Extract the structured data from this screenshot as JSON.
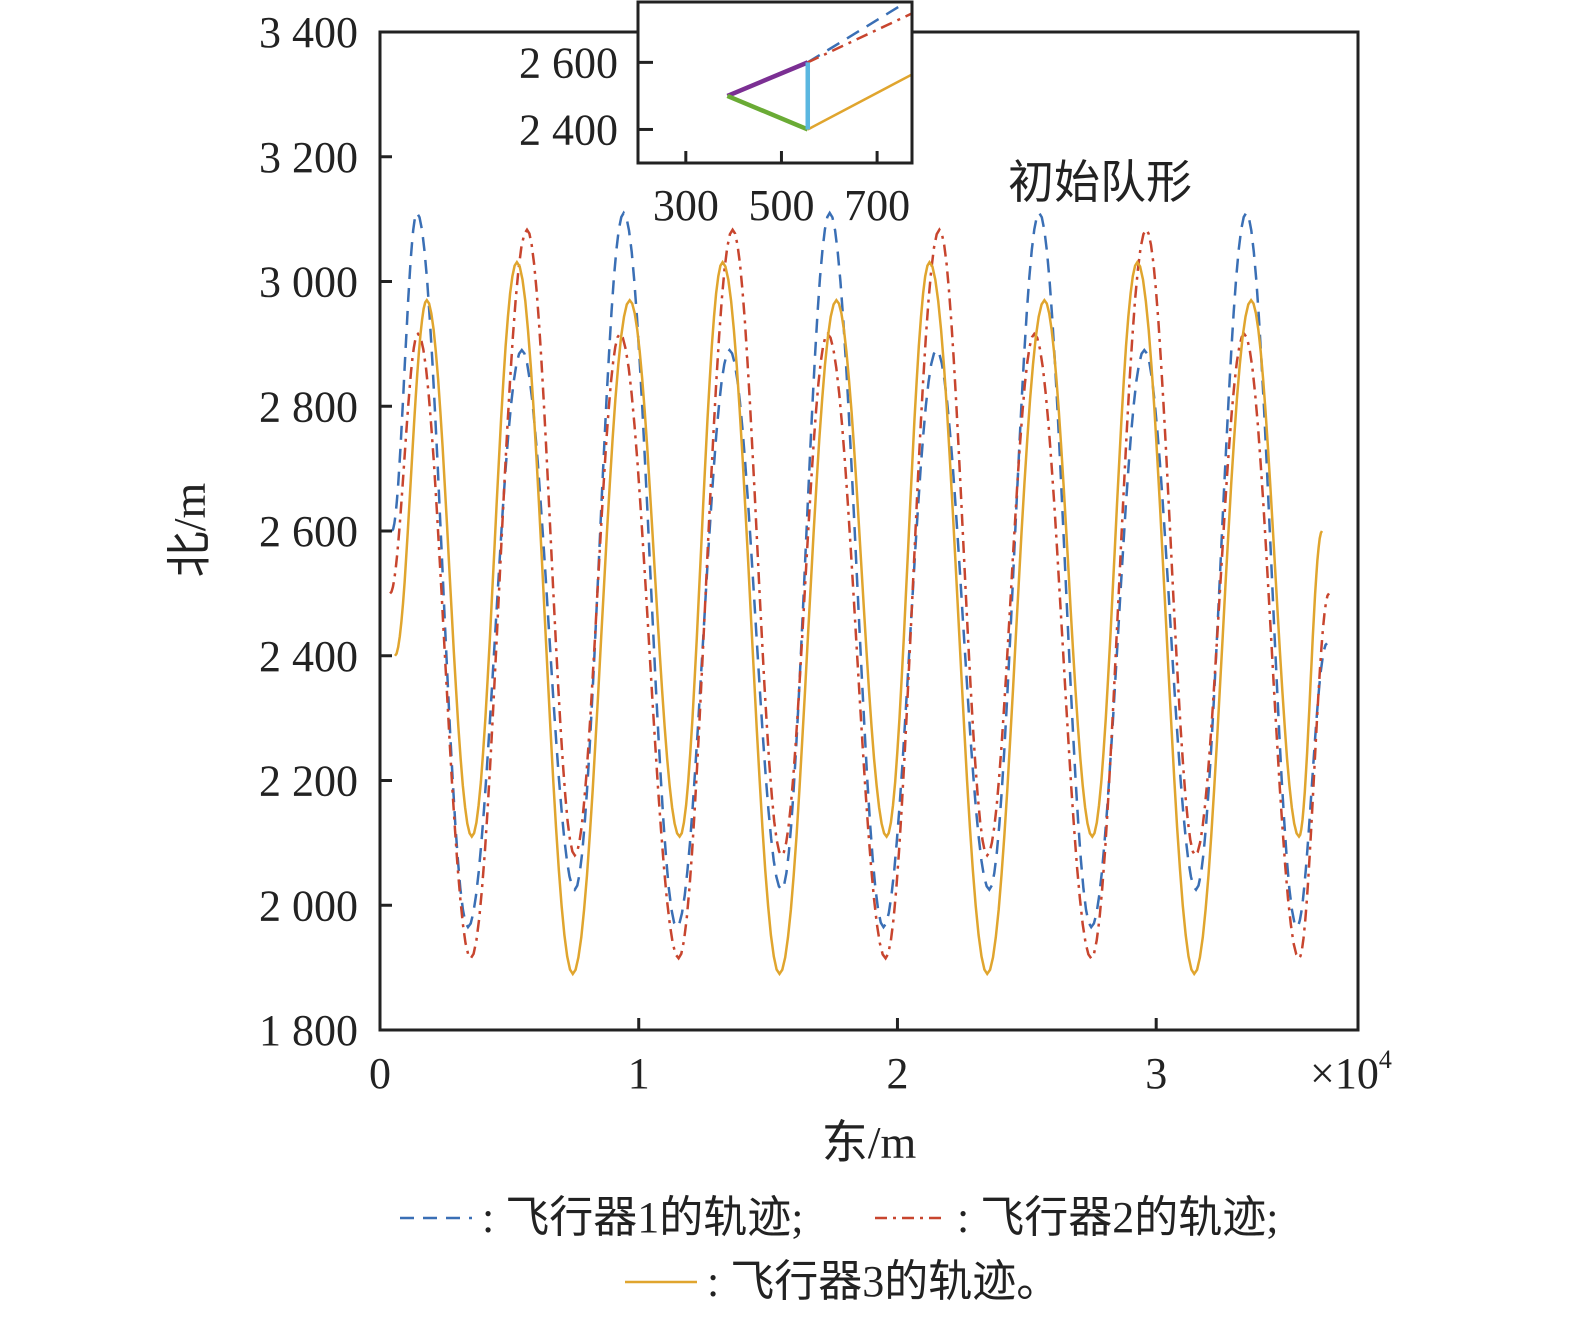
{
  "chart_data": {
    "type": "line",
    "title": "",
    "xlabel": "东/m",
    "ylabel": "北/m",
    "x_multiplier_label": "×10",
    "x_multiplier_exp": "4",
    "xlim": [
      0,
      37800
    ],
    "ylim": [
      1800,
      3400
    ],
    "xticks": [
      {
        "v": 0,
        "label": "0"
      },
      {
        "v": 10000,
        "label": "1"
      },
      {
        "v": 20000,
        "label": "2"
      },
      {
        "v": 30000,
        "label": "3"
      }
    ],
    "yticks": [
      {
        "v": 1800,
        "label": "1 800"
      },
      {
        "v": 2000,
        "label": "2 000"
      },
      {
        "v": 2200,
        "label": "2 200"
      },
      {
        "v": 2400,
        "label": "2 400"
      },
      {
        "v": 2600,
        "label": "2 600"
      },
      {
        "v": 2800,
        "label": "2 800"
      },
      {
        "v": 3000,
        "label": "3 000"
      },
      {
        "v": 3200,
        "label": "3 200"
      },
      {
        "v": 3400,
        "label": "3 400"
      }
    ],
    "annotation": "初始队形",
    "series": [
      {
        "name": "飞行器1的轨迹",
        "color": "#3a6fb5",
        "dash": "dashed",
        "points": [
          [
            460,
            2600
          ],
          [
            1430,
            3110
          ],
          [
            3400,
            1965
          ],
          [
            5480,
            2890
          ],
          [
            7530,
            2025
          ],
          [
            9420,
            3110
          ],
          [
            11470,
            1965
          ],
          [
            13510,
            2890
          ],
          [
            15520,
            2025
          ],
          [
            17380,
            3110
          ],
          [
            19460,
            1965
          ],
          [
            21510,
            2890
          ],
          [
            23550,
            2025
          ],
          [
            25480,
            3110
          ],
          [
            27490,
            1965
          ],
          [
            29540,
            2890
          ],
          [
            31540,
            2025
          ],
          [
            33480,
            3110
          ],
          [
            35440,
            1965
          ],
          [
            36600,
            2420
          ]
        ]
      },
      {
        "name": "飞行器2的轨迹",
        "color": "#c8452e",
        "dash": "dashdot",
        "points": [
          [
            390,
            2500
          ],
          [
            1470,
            2916
          ],
          [
            3510,
            1915
          ],
          [
            5680,
            3083
          ],
          [
            7530,
            2080
          ],
          [
            9270,
            2916
          ],
          [
            11540,
            1915
          ],
          [
            13630,
            3083
          ],
          [
            15520,
            2080
          ],
          [
            17300,
            2916
          ],
          [
            19540,
            1915
          ],
          [
            21620,
            3083
          ],
          [
            23470,
            2080
          ],
          [
            25290,
            2916
          ],
          [
            27490,
            1915
          ],
          [
            29610,
            3083
          ],
          [
            31510,
            2080
          ],
          [
            33400,
            2916
          ],
          [
            35520,
            1915
          ],
          [
            36680,
            2500
          ]
        ]
      },
      {
        "name": "飞行器3的轨迹",
        "color": "#e0a52e",
        "dash": "solid",
        "points": [
          [
            580,
            2400
          ],
          [
            1810,
            2970
          ],
          [
            3550,
            2110
          ],
          [
            5290,
            3031
          ],
          [
            7450,
            1890
          ],
          [
            9650,
            2970
          ],
          [
            11580,
            2110
          ],
          [
            13240,
            3031
          ],
          [
            15440,
            1890
          ],
          [
            17640,
            2970
          ],
          [
            19580,
            2110
          ],
          [
            21240,
            3031
          ],
          [
            23470,
            1890
          ],
          [
            25680,
            2970
          ],
          [
            27530,
            2110
          ],
          [
            29270,
            3031
          ],
          [
            31470,
            1890
          ],
          [
            33670,
            2970
          ],
          [
            35520,
            2110
          ],
          [
            36410,
            2600
          ]
        ]
      }
    ],
    "inset": {
      "xlim": [
        200,
        773
      ],
      "ylim": [
        2300,
        2780
      ],
      "xticks": [
        {
          "v": 300,
          "label": "300"
        },
        {
          "v": 500,
          "label": "500"
        },
        {
          "v": 700,
          "label": "700"
        }
      ],
      "yticks": [
        {
          "v": 2400,
          "label": "2 400"
        },
        {
          "v": 2600,
          "label": "2 600"
        }
      ],
      "formation_edges": [
        {
          "name": "edge-1-2",
          "color": "#7b2f93",
          "from": [
            387,
            2500
          ],
          "to": [
            555,
            2600
          ]
        },
        {
          "name": "edge-1-3",
          "color": "#6aab35",
          "from": [
            387,
            2500
          ],
          "to": [
            555,
            2400
          ]
        },
        {
          "name": "edge-2-3",
          "color": "#5bb7e0",
          "from": [
            555,
            2600
          ],
          "to": [
            555,
            2400
          ]
        }
      ],
      "tracks": [
        {
          "series": 0,
          "from": [
            555,
            2600
          ],
          "to": [
            773,
            2790
          ]
        },
        {
          "series": 1,
          "from": [
            555,
            2600
          ],
          "to": [
            773,
            2746
          ]
        },
        {
          "series": 2,
          "from": [
            555,
            2400
          ],
          "to": [
            773,
            2564
          ]
        }
      ]
    },
    "legend": {
      "placement": "bottom",
      "separator": ": ",
      "entries": [
        {
          "label": "飞行器1的轨迹;",
          "series": 0
        },
        {
          "label": "飞行器2的轨迹;",
          "series": 1
        },
        {
          "label": "飞行器3的轨迹。",
          "series": 2
        }
      ]
    }
  }
}
